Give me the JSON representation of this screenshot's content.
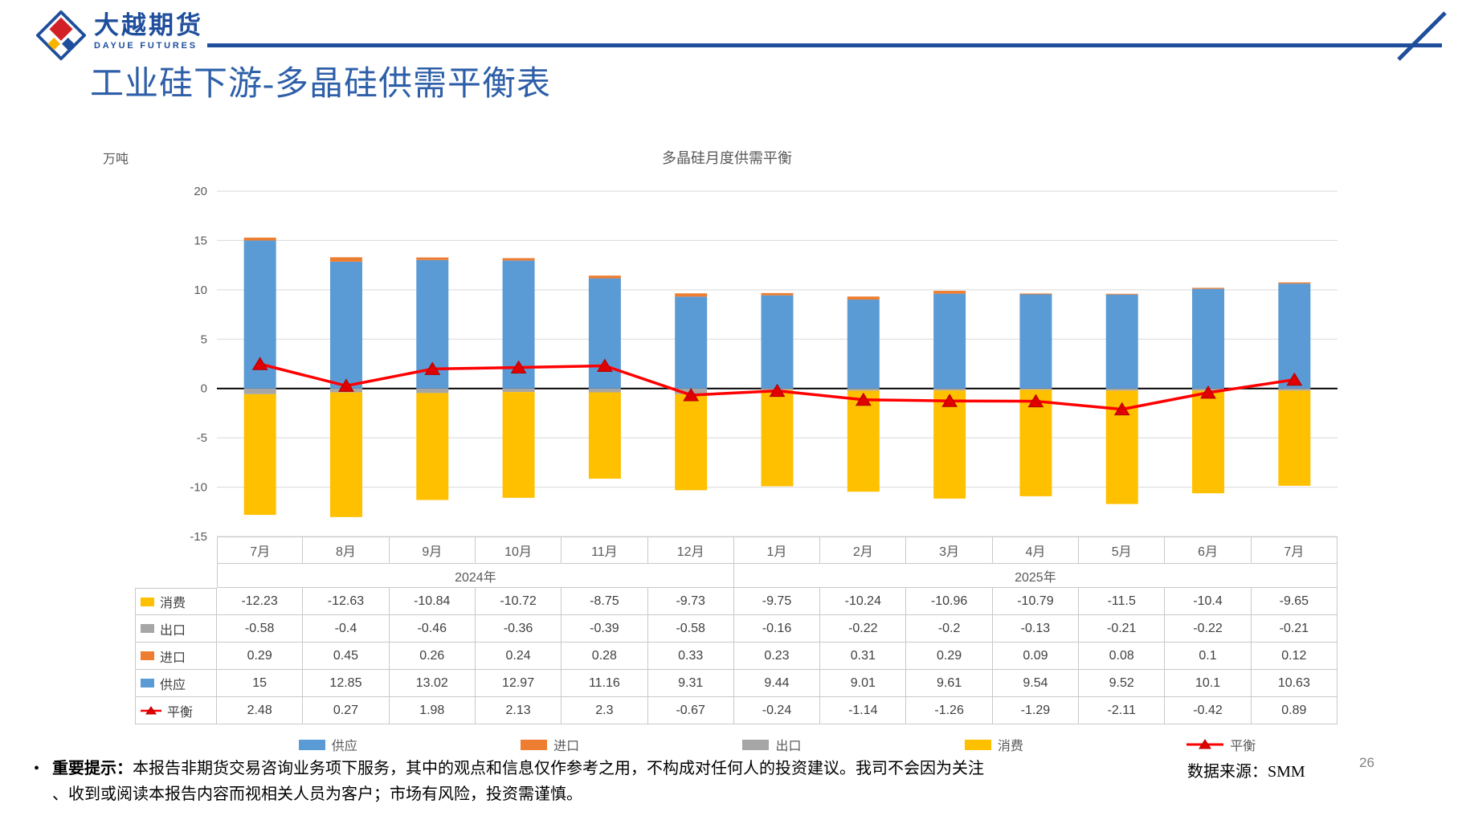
{
  "logo": {
    "name": "大越期货",
    "subtitle": "DAYUE FUTURES"
  },
  "page_title": "工业硅下游-多晶硅供需平衡表",
  "page_number": "26",
  "source": "数据来源：SMM",
  "colors": {
    "brand_blue": "#1F4E9C",
    "title_blue": "#2E5FA8"
  },
  "disclaimer": {
    "bullet": "•",
    "label": "重要提示：",
    "line1": "本报告非期货交易咨询业务项下服务，其中的观点和信息仅作参考之用，不构成对任何人的投资建议。我司不会因为关注",
    "line2": "、收到或阅读本报告内容而视相关人员为客户；市场有风险，投资需谨慎。"
  },
  "chart_data": {
    "type": "bar",
    "subtype": "stacked-bar-with-line",
    "title": "多晶硅月度供需平衡",
    "unit_label": "万吨",
    "categories": [
      "7月",
      "8月",
      "9月",
      "10月",
      "11月",
      "12月",
      "1月",
      "2月",
      "3月",
      "4月",
      "5月",
      "6月",
      "7月"
    ],
    "year_groups": [
      {
        "label": "2024年",
        "span": 6
      },
      {
        "label": "2025年",
        "span": 7
      }
    ],
    "ylim": [
      -15,
      20
    ],
    "ytick_step": 5,
    "grid": true,
    "legend_position": "bottom",
    "stack_order": [
      "供应",
      "进口",
      "出口",
      "消费"
    ],
    "line_series": "平衡",
    "marker": {
      "fill": "#E00000",
      "stroke": "#B00000"
    },
    "series": [
      {
        "name": "消费",
        "type": "bar",
        "color": "#FFC000",
        "values": [
          -12.23,
          -12.63,
          -10.84,
          -10.72,
          -8.75,
          -9.73,
          -9.75,
          -10.24,
          -10.96,
          -10.79,
          -11.5,
          -10.4,
          -9.65
        ]
      },
      {
        "name": "出口",
        "type": "bar",
        "color": "#A6A6A6",
        "values": [
          -0.58,
          -0.4,
          -0.46,
          -0.36,
          -0.39,
          -0.58,
          -0.16,
          -0.22,
          -0.2,
          -0.13,
          -0.21,
          -0.22,
          -0.21
        ]
      },
      {
        "name": "进口",
        "type": "bar",
        "color": "#ED7D31",
        "values": [
          0.29,
          0.45,
          0.26,
          0.24,
          0.28,
          0.33,
          0.23,
          0.31,
          0.29,
          0.09,
          0.08,
          0.1,
          0.12
        ]
      },
      {
        "name": "供应",
        "type": "bar",
        "color": "#5B9BD5",
        "values": [
          15,
          12.85,
          13.02,
          12.97,
          11.16,
          9.31,
          9.44,
          9.01,
          9.61,
          9.54,
          9.52,
          10.1,
          10.63
        ]
      },
      {
        "name": "平衡",
        "type": "line",
        "color": "#FF0000",
        "values": [
          2.48,
          0.27,
          1.98,
          2.13,
          2.3,
          -0.67,
          -0.24,
          -1.14,
          -1.26,
          -1.29,
          -2.11,
          -0.42,
          0.89
        ]
      }
    ],
    "legend": [
      "供应",
      "进口",
      "出口",
      "消费",
      "平衡"
    ]
  }
}
